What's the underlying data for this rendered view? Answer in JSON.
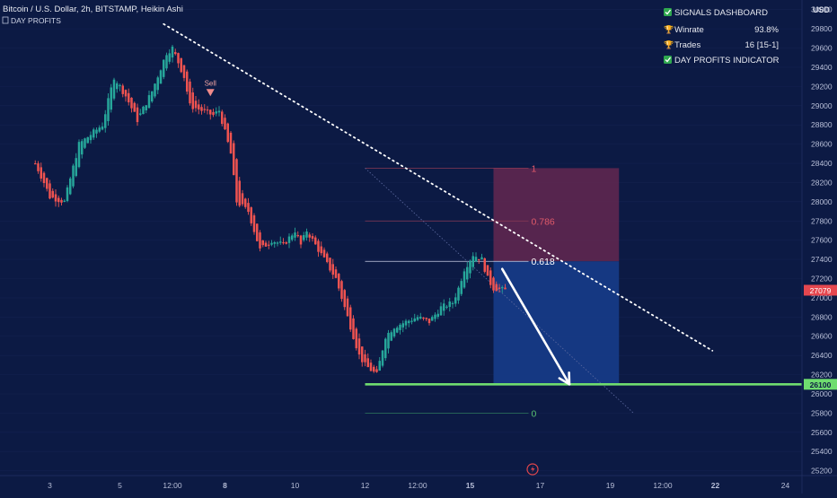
{
  "header": {
    "title": "Bitcoin / U.S. Dollar, 2h, BITSTAMP, Heikin Ashi",
    "indicator": "DAY PROFITS",
    "currency": "USD"
  },
  "dashboard": {
    "title": "SIGNALS DASHBOARD",
    "rows": [
      {
        "label": "Winrate",
        "value": "93.8%"
      },
      {
        "label": "Trades",
        "value": "16 [15-1]"
      }
    ],
    "footer": "DAY PROFITS INDICATOR"
  },
  "price_labels": {
    "current": "27079",
    "support": "26100"
  },
  "signal": {
    "label": "Sell"
  },
  "colors": {
    "background": "#0c1a44",
    "up": "#26a69a",
    "down": "#ef5350",
    "support": "#6fdc6f",
    "stop_zone": "#5e2750",
    "target_zone": "#163a86"
  },
  "chart_data": {
    "type": "candlestick",
    "title": "Bitcoin / U.S. Dollar, 2h, BITSTAMP, Heikin Ashi",
    "ylabel": "USD",
    "ylim": [
      25150,
      30100
    ],
    "y_ticks": [
      25200,
      25400,
      25600,
      25800,
      26000,
      26200,
      26400,
      26600,
      26800,
      27000,
      27200,
      27400,
      27600,
      27800,
      28000,
      28200,
      28400,
      28600,
      28800,
      29000,
      29200,
      29400,
      29600,
      29800,
      30000
    ],
    "x_ticks": [
      {
        "label": "3",
        "bar": 0
      },
      {
        "label": "5",
        "bar": 24
      },
      {
        "label": "12:00",
        "bar": 42
      },
      {
        "label": "8",
        "bar": 60
      },
      {
        "label": "10",
        "bar": 84
      },
      {
        "label": "12",
        "bar": 108
      },
      {
        "label": "12:00",
        "bar": 126
      },
      {
        "label": "15",
        "bar": 144
      },
      {
        "label": "17",
        "bar": 168
      },
      {
        "label": "19",
        "bar": 192
      },
      {
        "label": "12:00",
        "bar": 210
      },
      {
        "label": "22",
        "bar": 228
      },
      {
        "label": "24",
        "bar": 252
      }
    ],
    "keyframes": [
      {
        "bar": -5,
        "price": 28400
      },
      {
        "bar": -2,
        "price": 28200
      },
      {
        "bar": 0,
        "price": 28050
      },
      {
        "bar": 5,
        "price": 28000
      },
      {
        "bar": 10,
        "price": 28600
      },
      {
        "bar": 14,
        "price": 28700
      },
      {
        "bar": 18,
        "price": 28800
      },
      {
        "bar": 22,
        "price": 29300
      },
      {
        "bar": 26,
        "price": 29100
      },
      {
        "bar": 30,
        "price": 28850
      },
      {
        "bar": 35,
        "price": 29150
      },
      {
        "bar": 40,
        "price": 29550
      },
      {
        "bar": 42,
        "price": 29600
      },
      {
        "bar": 46,
        "price": 29300
      },
      {
        "bar": 48,
        "price": 29000
      },
      {
        "bar": 52,
        "price": 28950
      },
      {
        "bar": 56,
        "price": 28900
      },
      {
        "bar": 58,
        "price": 28950
      },
      {
        "bar": 62,
        "price": 28500
      },
      {
        "bar": 64,
        "price": 28000
      },
      {
        "bar": 68,
        "price": 27900
      },
      {
        "bar": 72,
        "price": 27500
      },
      {
        "bar": 76,
        "price": 27600
      },
      {
        "bar": 80,
        "price": 27550
      },
      {
        "bar": 84,
        "price": 27700
      },
      {
        "bar": 86,
        "price": 27550
      },
      {
        "bar": 88,
        "price": 27700
      },
      {
        "bar": 90,
        "price": 27600
      },
      {
        "bar": 94,
        "price": 27400
      },
      {
        "bar": 98,
        "price": 27200
      },
      {
        "bar": 102,
        "price": 26800
      },
      {
        "bar": 106,
        "price": 26400
      },
      {
        "bar": 108,
        "price": 26300
      },
      {
        "bar": 110,
        "price": 26250
      },
      {
        "bar": 112,
        "price": 26200
      },
      {
        "bar": 115,
        "price": 26600
      },
      {
        "bar": 118,
        "price": 26700
      },
      {
        "bar": 122,
        "price": 26750
      },
      {
        "bar": 126,
        "price": 26800
      },
      {
        "bar": 130,
        "price": 26750
      },
      {
        "bar": 134,
        "price": 26900
      },
      {
        "bar": 138,
        "price": 26950
      },
      {
        "bar": 140,
        "price": 27100
      },
      {
        "bar": 142,
        "price": 27300
      },
      {
        "bar": 145,
        "price": 27450
      },
      {
        "bar": 148,
        "price": 27400
      },
      {
        "bar": 150,
        "price": 27200
      },
      {
        "bar": 152,
        "price": 27100
      },
      {
        "bar": 156,
        "price": 27079
      }
    ],
    "trendline": {
      "start": {
        "bar": 39,
        "price": 29850
      },
      "end": {
        "bar": 227,
        "price": 26450
      }
    },
    "signal": {
      "bar": 55,
      "price": 29070,
      "label": "Sell"
    },
    "support": {
      "price": 26100,
      "from_bar": 108
    },
    "fibonacci": {
      "from_bar": 108,
      "to_bar": 164,
      "levels": [
        {
          "ratio": "1",
          "price": 28350
        },
        {
          "ratio": "0.786",
          "price": 27800
        },
        {
          "ratio": "0.618",
          "price": 27380
        },
        {
          "ratio": "0",
          "price": 25800
        }
      ]
    },
    "fib_diagonal": {
      "start": {
        "bar": 108,
        "price": 28350
      },
      "end": {
        "bar": 200,
        "price": 25800
      }
    },
    "position": {
      "from_bar": 152,
      "to_bar": 195,
      "entry": 27380,
      "stop": 28350,
      "target": 26100
    },
    "projection_arrow": {
      "start": {
        "bar": 155,
        "price": 27300
      },
      "end": {
        "bar": 178,
        "price": 26100
      }
    },
    "current_price": 27079
  }
}
